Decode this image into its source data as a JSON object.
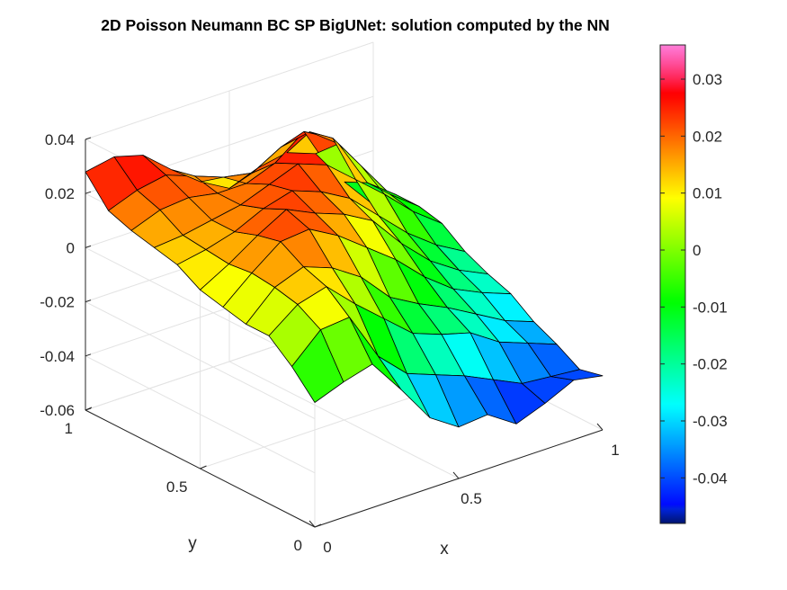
{
  "chart_data": {
    "type": "surface",
    "title": "2D Poisson Neumann BC SP BigUNet: solution computed by the NN",
    "xlabel": "x",
    "ylabel": "y",
    "zlabel": "",
    "x": [
      0,
      0.1,
      0.2,
      0.3,
      0.4,
      0.5,
      0.6,
      0.7,
      0.8,
      0.9,
      1
    ],
    "y": [
      0,
      0.1,
      0.2,
      0.3,
      0.4,
      0.5,
      0.6,
      0.7,
      0.8,
      0.9,
      1
    ],
    "z": [
      [
        -0.014,
        -0.01,
        -0.007,
        -0.02,
        -0.034,
        -0.041,
        -0.04,
        -0.047,
        -0.043,
        -0.038,
        -0.04
      ],
      [
        -0.005,
        0.005,
        0.006,
        -0.012,
        -0.022,
        -0.026,
        -0.03,
        -0.035,
        -0.04,
        -0.041,
        -0.042
      ],
      [
        0.002,
        0.01,
        0.013,
        0.003,
        -0.006,
        -0.015,
        -0.019,
        -0.022,
        -0.029,
        -0.033,
        -0.037
      ],
      [
        0.002,
        0.012,
        0.016,
        0.012,
        0.005,
        -0.006,
        -0.012,
        -0.017,
        -0.023,
        -0.029,
        -0.033
      ],
      [
        0.004,
        0.013,
        0.021,
        0.022,
        0.016,
        0.008,
        0.0,
        -0.01,
        -0.018,
        -0.023,
        -0.027
      ],
      [
        0.006,
        0.012,
        0.019,
        0.025,
        0.02,
        0.016,
        0.01,
        -0.002,
        -0.012,
        -0.019,
        -0.024
      ],
      [
        0.011,
        0.013,
        0.016,
        0.021,
        0.024,
        0.02,
        0.014,
        0.004,
        -0.006,
        -0.014,
        -0.02
      ],
      [
        0.013,
        0.014,
        0.016,
        0.018,
        0.022,
        0.026,
        0.022,
        0.013,
        0.004,
        -0.006,
        -0.014
      ],
      [
        0.015,
        0.019,
        0.02,
        0.018,
        0.018,
        0.022,
        0.03,
        0.024,
        0.01,
        -0.004,
        -0.012
      ],
      [
        0.018,
        0.022,
        0.024,
        0.02,
        0.016,
        0.014,
        0.02,
        0.022,
        0.014,
        -0.004,
        -0.012
      ],
      [
        0.028,
        0.03,
        0.027,
        0.018,
        0.01,
        0.004,
        0.008,
        0.01,
        0.006,
        -0.008,
        -0.02
      ]
    ],
    "xlim": [
      0,
      1
    ],
    "ylim": [
      0,
      1
    ],
    "zlim": [
      -0.06,
      0.04
    ],
    "xticks": [
      0,
      0.5,
      1
    ],
    "yticks": [
      0,
      0.5,
      1
    ],
    "zticks": [
      -0.06,
      -0.04,
      -0.02,
      0,
      0.02,
      0.04
    ],
    "xticklabels": [
      "0",
      "0.5",
      "1"
    ],
    "yticklabels": [
      "0",
      "0.5",
      "1"
    ],
    "zticklabels": [
      "-0.06",
      "-0.04",
      "-0.02",
      "0",
      "0.02",
      "0.04"
    ],
    "grid": true,
    "colormap": "hsv",
    "colorbar": {
      "location": "right",
      "limits": [
        -0.048,
        0.036
      ],
      "ticks": [
        0.03,
        0.02,
        0.01,
        0,
        -0.01,
        -0.02,
        -0.03,
        -0.04
      ],
      "ticklabels": [
        "0.03",
        "0.02",
        "0.01",
        "0",
        "-0.01",
        "-0.02",
        "-0.03",
        "-0.04"
      ]
    }
  }
}
